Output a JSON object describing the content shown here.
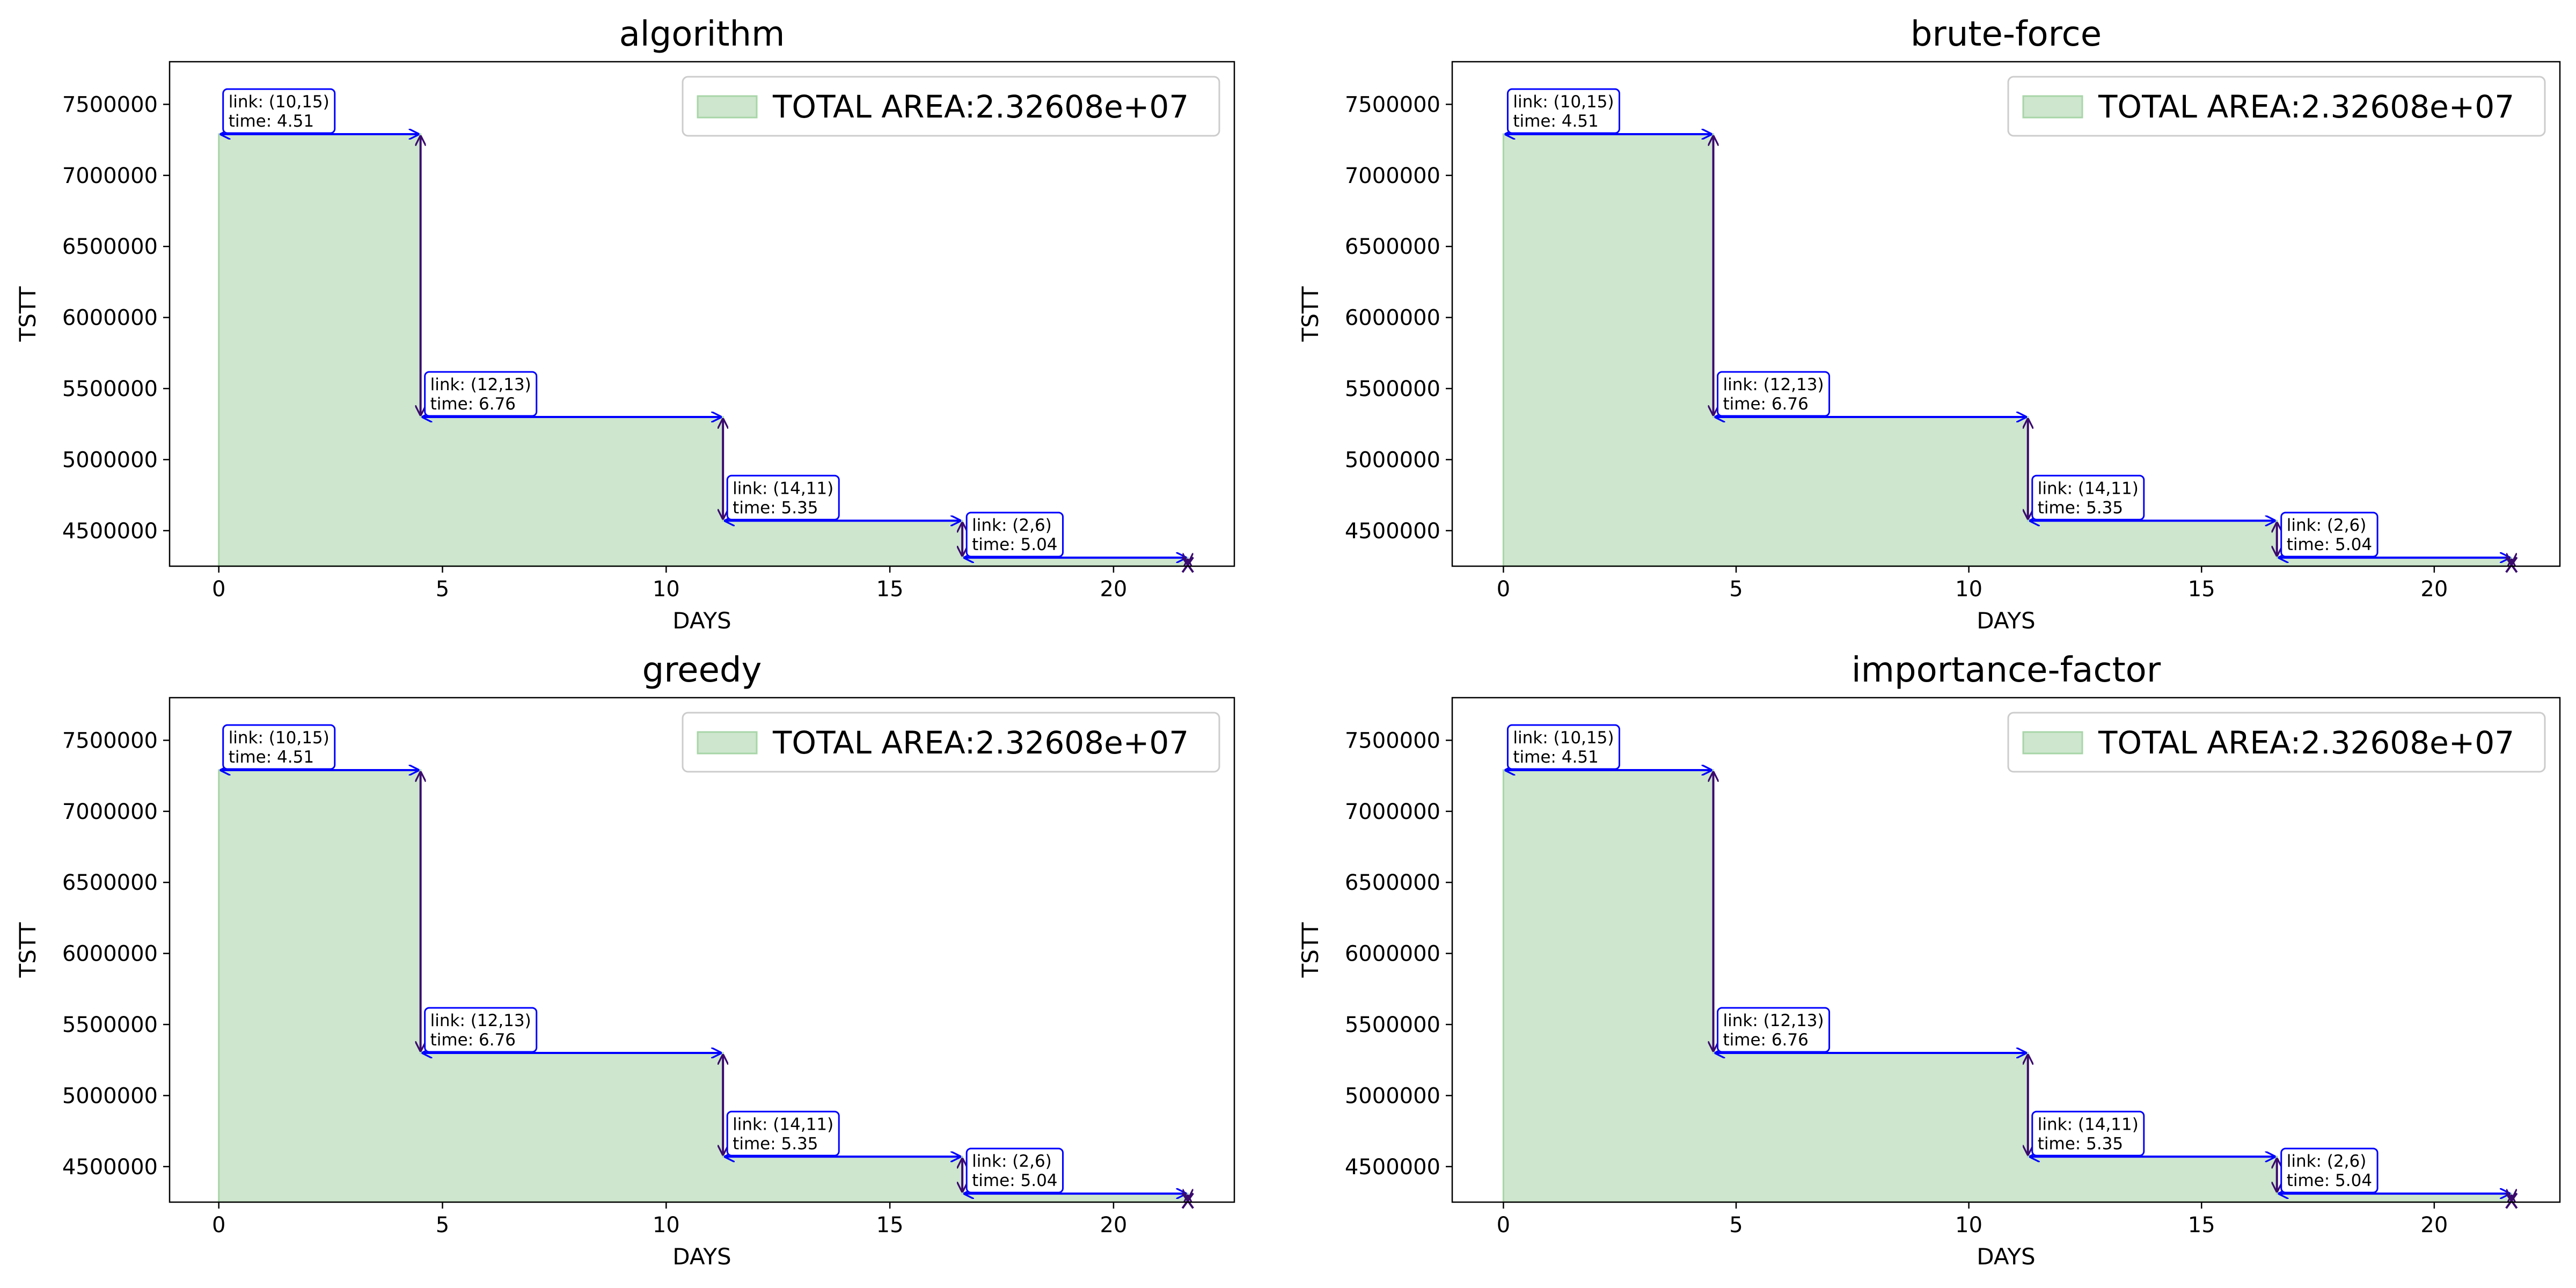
{
  "colors": {
    "fill": "#cde6cd",
    "fill_edge": "#a8d5a8",
    "arrow_horizontal": "#0000ff",
    "arrow_vertical": "#3a0a6e",
    "annotation_border": "#0000ff"
  },
  "chart_data": [
    {
      "type": "area",
      "style": "step",
      "title": "algorithm",
      "xlabel": "DAYS",
      "ylabel": "TSTT",
      "xlim": [
        -1.1,
        22.7
      ],
      "ylim": [
        4250000,
        7800000
      ],
      "xticks": [
        0,
        5,
        10,
        15,
        20
      ],
      "yticks": [
        4500000,
        5000000,
        5500000,
        6000000,
        6500000,
        7000000,
        7500000
      ],
      "legend": "TOTAL AREA:2.32608e+07",
      "legend_position": "top-right",
      "grid": false,
      "x": [
        0,
        4.51,
        11.27,
        16.62,
        21.66
      ],
      "y": [
        7290000,
        5300000,
        4570000,
        4310000,
        4260000
      ],
      "annotations": [
        {
          "link": "link: (10,15)",
          "time": "time: 4.51"
        },
        {
          "link": "link: (12,13)",
          "time": "time: 6.76"
        },
        {
          "link": "link: (14,11)",
          "time": "time: 5.35"
        },
        {
          "link": "link: (2,6)",
          "time": "time: 5.04"
        }
      ]
    },
    {
      "type": "area",
      "style": "step",
      "title": "brute-force",
      "xlabel": "DAYS",
      "ylabel": "TSTT",
      "xlim": [
        -1.1,
        22.7
      ],
      "ylim": [
        4250000,
        7800000
      ],
      "xticks": [
        0,
        5,
        10,
        15,
        20
      ],
      "yticks": [
        4500000,
        5000000,
        5500000,
        6000000,
        6500000,
        7000000,
        7500000
      ],
      "legend": "TOTAL AREA:2.32608e+07",
      "legend_position": "top-right",
      "grid": false,
      "x": [
        0,
        4.51,
        11.27,
        16.62,
        21.66
      ],
      "y": [
        7290000,
        5300000,
        4570000,
        4310000,
        4260000
      ],
      "annotations": [
        {
          "link": "link: (10,15)",
          "time": "time: 4.51"
        },
        {
          "link": "link: (12,13)",
          "time": "time: 6.76"
        },
        {
          "link": "link: (14,11)",
          "time": "time: 5.35"
        },
        {
          "link": "link: (2,6)",
          "time": "time: 5.04"
        }
      ]
    },
    {
      "type": "area",
      "style": "step",
      "title": "greedy",
      "xlabel": "DAYS",
      "ylabel": "TSTT",
      "xlim": [
        -1.1,
        22.7
      ],
      "ylim": [
        4250000,
        7800000
      ],
      "xticks": [
        0,
        5,
        10,
        15,
        20
      ],
      "yticks": [
        4500000,
        5000000,
        5500000,
        6000000,
        6500000,
        7000000,
        7500000
      ],
      "legend": "TOTAL AREA:2.32608e+07",
      "legend_position": "top-right",
      "grid": false,
      "x": [
        0,
        4.51,
        11.27,
        16.62,
        21.66
      ],
      "y": [
        7290000,
        5300000,
        4570000,
        4310000,
        4260000
      ],
      "annotations": [
        {
          "link": "link: (10,15)",
          "time": "time: 4.51"
        },
        {
          "link": "link: (12,13)",
          "time": "time: 6.76"
        },
        {
          "link": "link: (14,11)",
          "time": "time: 5.35"
        },
        {
          "link": "link: (2,6)",
          "time": "time: 5.04"
        }
      ]
    },
    {
      "type": "area",
      "style": "step",
      "title": "importance-factor",
      "xlabel": "DAYS",
      "ylabel": "TSTT",
      "xlim": [
        -1.1,
        22.7
      ],
      "ylim": [
        4250000,
        7800000
      ],
      "xticks": [
        0,
        5,
        10,
        15,
        20
      ],
      "yticks": [
        4500000,
        5000000,
        5500000,
        6000000,
        6500000,
        7000000,
        7500000
      ],
      "legend": "TOTAL AREA:2.32608e+07",
      "legend_position": "top-right",
      "grid": false,
      "x": [
        0,
        4.51,
        11.27,
        16.62,
        21.66
      ],
      "y": [
        7290000,
        5300000,
        4570000,
        4310000,
        4260000
      ],
      "annotations": [
        {
          "link": "link: (10,15)",
          "time": "time: 4.51"
        },
        {
          "link": "link: (12,13)",
          "time": "time: 6.76"
        },
        {
          "link": "link: (14,11)",
          "time": "time: 5.35"
        },
        {
          "link": "link: (2,6)",
          "time": "time: 5.04"
        }
      ]
    }
  ]
}
